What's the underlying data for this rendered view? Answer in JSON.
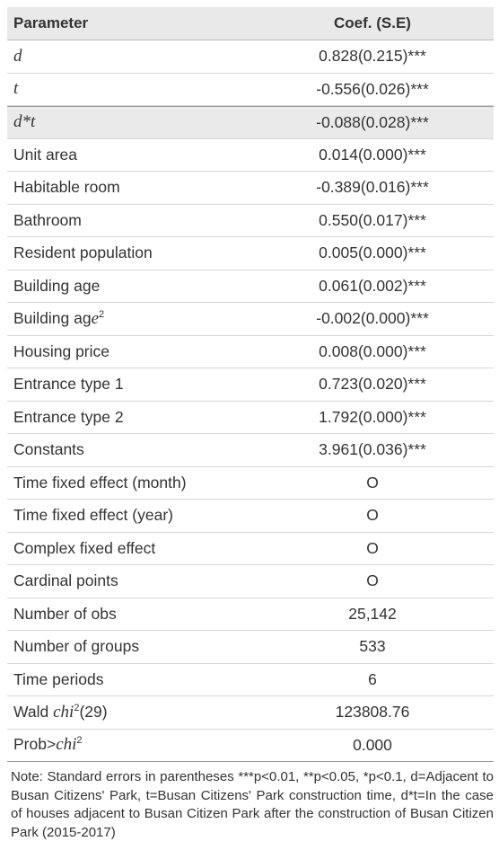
{
  "table": {
    "header": [
      "Parameter",
      "Coef. (S.E)"
    ],
    "rows": [
      [
        "d",
        "0.828(0.215)***"
      ],
      [
        "t",
        "-0.556(0.026)***"
      ],
      [
        "d*t",
        "-0.088(0.028)***"
      ],
      [
        "Unit area",
        "0.014(0.000)***"
      ],
      [
        "Habitable room",
        "-0.389(0.016)***"
      ],
      [
        "Bathroom",
        "0.550(0.017)***"
      ],
      [
        "Resident population",
        "0.005(0.000)***"
      ],
      [
        "Building age",
        "0.061(0.002)***"
      ],
      [
        [
          "Building ag",
          "e",
          "2"
        ],
        "-0.002(0.000)***"
      ],
      [
        "Housing price",
        "0.008(0.000)***"
      ],
      [
        "Entrance type 1",
        "0.723(0.020)***"
      ],
      [
        "Entrance type 2",
        "1.792(0.000)***"
      ],
      [
        "Constants",
        "3.961(0.036)***"
      ],
      [
        "Time fixed effect (month)",
        "O"
      ],
      [
        "Time fixed effect (year)",
        "O"
      ],
      [
        "Complex fixed effect",
        "O"
      ],
      [
        "Cardinal points",
        "O"
      ],
      [
        "Number of obs",
        "25,142"
      ],
      [
        "Number of groups",
        "533"
      ],
      [
        "Time periods",
        "6"
      ],
      [
        [
          "Wald ",
          "chi",
          "2",
          "(29)"
        ],
        "123808.76"
      ],
      [
        [
          "Prob>",
          "chi",
          "2"
        ],
        "0.000"
      ]
    ],
    "note": "Note: Standard errors in parentheses ***p<0.01, **p<0.05, *p<0.1, d=Adjacent to Busan Citizens' Park, t=Busan Citizens' Park construction time, d*t=In the case of houses adjacent to Busan Citizen Park after the construction of Busan Citizen Park (2015-2017)"
  }
}
